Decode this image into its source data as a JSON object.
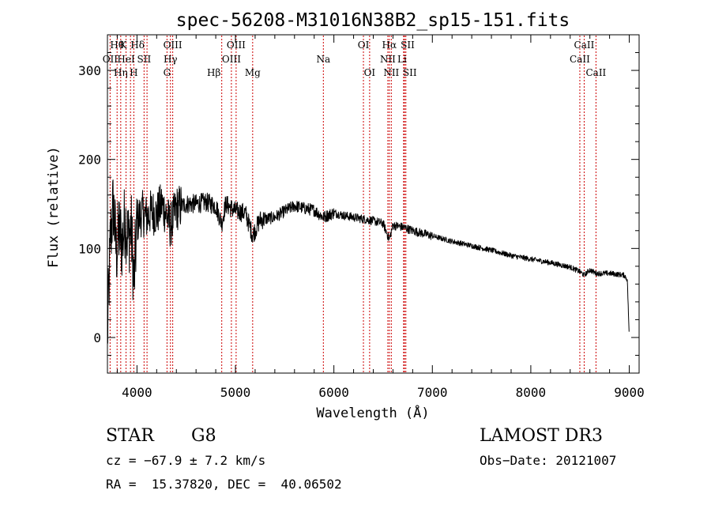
{
  "chart_data": {
    "type": "line",
    "title": "spec-56208-M31016N38B2_sp15-151.fits",
    "xlabel": "Wavelength (Å)",
    "ylabel": "Flux (relative)",
    "xlim": [
      3700,
      9100
    ],
    "ylim": [
      -40,
      340
    ],
    "xticks": [
      4000,
      5000,
      6000,
      7000,
      8000,
      9000
    ],
    "yticks": [
      0,
      100,
      200,
      300
    ],
    "grid": false,
    "line_color": "#000000",
    "marker_color": "#cc0000",
    "series": [
      {
        "name": "flux",
        "anchors": [
          [
            3700,
            0
          ],
          [
            3730,
            110
          ],
          [
            3760,
            150
          ],
          [
            3790,
            95
          ],
          [
            3820,
            120
          ],
          [
            3850,
            105
          ],
          [
            3880,
            135
          ],
          [
            3910,
            110
          ],
          [
            3940,
            125
          ],
          [
            3970,
            60
          ],
          [
            4000,
            130
          ],
          [
            4050,
            140
          ],
          [
            4100,
            135
          ],
          [
            4150,
            142
          ],
          [
            4200,
            138
          ],
          [
            4250,
            150
          ],
          [
            4300,
            138
          ],
          [
            4340,
            125
          ],
          [
            4400,
            145
          ],
          [
            4500,
            150
          ],
          [
            4600,
            150
          ],
          [
            4700,
            152
          ],
          [
            4800,
            148
          ],
          [
            4861,
            128
          ],
          [
            4900,
            150
          ],
          [
            5000,
            142
          ],
          [
            5100,
            140
          ],
          [
            5175,
            115
          ],
          [
            5250,
            132
          ],
          [
            5400,
            135
          ],
          [
            5500,
            142
          ],
          [
            5600,
            148
          ],
          [
            5700,
            145
          ],
          [
            5800,
            143
          ],
          [
            5893,
            135
          ],
          [
            6000,
            140
          ],
          [
            6100,
            137
          ],
          [
            6200,
            135
          ],
          [
            6300,
            133
          ],
          [
            6400,
            131
          ],
          [
            6500,
            128
          ],
          [
            6563,
            110
          ],
          [
            6600,
            126
          ],
          [
            6700,
            124
          ],
          [
            6800,
            120
          ],
          [
            6900,
            117
          ],
          [
            7000,
            114
          ],
          [
            7200,
            108
          ],
          [
            7400,
            103
          ],
          [
            7600,
            98
          ],
          [
            7800,
            92
          ],
          [
            8000,
            88
          ],
          [
            8200,
            84
          ],
          [
            8400,
            79
          ],
          [
            8498,
            74
          ],
          [
            8542,
            70
          ],
          [
            8600,
            76
          ],
          [
            8662,
            72
          ],
          [
            8800,
            72
          ],
          [
            8950,
            70
          ],
          [
            8980,
            65
          ],
          [
            9000,
            0
          ]
        ]
      }
    ],
    "lines": [
      {
        "label": "Hθ",
        "x": 3798,
        "row": 0,
        "dx": 0
      },
      {
        "label": "K",
        "x": 3934,
        "row": 0,
        "dx": -9
      },
      {
        "label": "Hδ",
        "x": 4102,
        "row": 0,
        "dx": -12
      },
      {
        "label": "OIII",
        "x": 4363,
        "row": 0,
        "dx": 0
      },
      {
        "label": "OIII",
        "x": 5007,
        "row": 0,
        "dx": 0
      },
      {
        "label": "OI",
        "x": 6300,
        "row": 0,
        "dx": 0
      },
      {
        "label": "Hα",
        "x": 6563,
        "row": 0,
        "dx": 0
      },
      {
        "label": "SII",
        "x": 6717,
        "row": 0,
        "dx": 4
      },
      {
        "label": "CaII",
        "x": 8542,
        "row": 0,
        "dx": 0
      },
      {
        "label": "OII",
        "x": 3727,
        "row": 1,
        "dx": 0
      },
      {
        "label": "HeI",
        "x": 3889,
        "row": 1,
        "dx": 0
      },
      {
        "label": "SII",
        "x": 4072,
        "row": 1,
        "dx": 0
      },
      {
        "label": "Hγ",
        "x": 4340,
        "row": 1,
        "dx": 0
      },
      {
        "label": "OIII",
        "x": 4959,
        "row": 1,
        "dx": 0
      },
      {
        "label": "Na",
        "x": 5893,
        "row": 1,
        "dx": 0
      },
      {
        "label": "NII",
        "x": 6548,
        "row": 1,
        "dx": 0
      },
      {
        "label": "Li",
        "x": 6708,
        "row": 1,
        "dx": -2
      },
      {
        "label": "CaII",
        "x": 8498,
        "row": 1,
        "dx": 0
      },
      {
        "label": "Hη",
        "x": 3835,
        "row": 2,
        "dx": 0
      },
      {
        "label": "H",
        "x": 3968,
        "row": 2,
        "dx": 0
      },
      {
        "label": "G",
        "x": 4305,
        "row": 2,
        "dx": 0
      },
      {
        "label": "Hβ",
        "x": 4861,
        "row": 2,
        "dx": -10
      },
      {
        "label": "Mg",
        "x": 5175,
        "row": 2,
        "dx": 0
      },
      {
        "label": "OI",
        "x": 6363,
        "row": 2,
        "dx": 0
      },
      {
        "label": "NII",
        "x": 6583,
        "row": 2,
        "dx": 0
      },
      {
        "label": "SII",
        "x": 6731,
        "row": 2,
        "dx": 5
      },
      {
        "label": "CaII",
        "x": 8662,
        "row": 2,
        "dx": 0
      }
    ]
  },
  "info": {
    "object_class": "STAR",
    "subclass": "G8",
    "survey": "LAMOST DR3",
    "cz": "cz = −67.9 ± 7.2 km/s",
    "obs_date": "Obs−Date: 20121007",
    "radec": "RA =  15.37820, DEC =  40.06502"
  }
}
